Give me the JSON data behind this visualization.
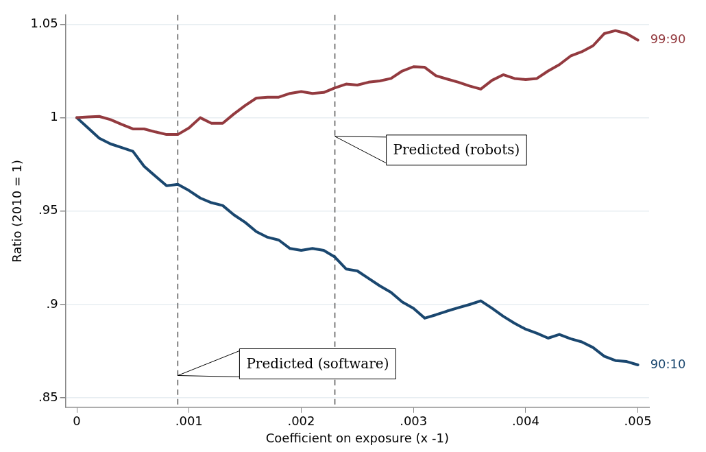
{
  "chart_data": {
    "type": "line",
    "xlabel": "Coefficient on exposure (x -1)",
    "ylabel": "Ratio (2010 = 1)",
    "x": [
      0,
      0.0001,
      0.0002,
      0.0003,
      0.0004,
      0.0005,
      0.0006,
      0.0007,
      0.0008,
      0.0009,
      0.001,
      0.0011,
      0.0012,
      0.0013,
      0.0014,
      0.0015,
      0.0016,
      0.0017,
      0.0018,
      0.0019,
      0.002,
      0.0021,
      0.0022,
      0.0023,
      0.0024,
      0.0025,
      0.0026,
      0.0027,
      0.0028,
      0.0029,
      0.003,
      0.0031,
      0.0032,
      0.0033,
      0.0034,
      0.0035,
      0.0036,
      0.0037,
      0.0038,
      0.0039,
      0.004,
      0.0041,
      0.0042,
      0.0043,
      0.0044,
      0.0045,
      0.0046,
      0.0047,
      0.0048,
      0.0049,
      0.005
    ],
    "series": [
      {
        "name": "99:90",
        "color": "#933a3f",
        "values": [
          1.0,
          1.0004,
          1.0007,
          0.999,
          0.9964,
          0.994,
          0.994,
          0.9924,
          0.991,
          0.991,
          0.9945,
          1.0,
          0.997,
          0.997,
          1.002,
          1.0065,
          1.0105,
          1.011,
          1.011,
          1.013,
          1.014,
          1.013,
          1.0135,
          1.016,
          1.018,
          1.0175,
          1.019,
          1.0197,
          1.021,
          1.025,
          1.0273,
          1.027,
          1.0225,
          1.0207,
          1.019,
          1.017,
          1.0153,
          1.02,
          1.023,
          1.021,
          1.0204,
          1.021,
          1.025,
          1.0284,
          1.033,
          1.0353,
          1.0385,
          1.045,
          1.0466,
          1.045,
          1.0415
        ]
      },
      {
        "name": "90:10",
        "color": "#1a476f",
        "values": [
          1.0,
          0.9945,
          0.989,
          0.986,
          0.984,
          0.982,
          0.974,
          0.9687,
          0.9636,
          0.9643,
          0.961,
          0.957,
          0.9545,
          0.953,
          0.948,
          0.944,
          0.939,
          0.936,
          0.9345,
          0.93,
          0.929,
          0.93,
          0.929,
          0.9254,
          0.919,
          0.918,
          0.914,
          0.91,
          0.9065,
          0.9014,
          0.898,
          0.8927,
          0.8945,
          0.8965,
          0.8983,
          0.9,
          0.902,
          0.898,
          0.8937,
          0.89,
          0.8868,
          0.8846,
          0.882,
          0.884,
          0.8817,
          0.88,
          0.877,
          0.8723,
          0.87,
          0.8695,
          0.8677
        ]
      }
    ],
    "xlim": [
      -0.0001,
      0.0051
    ],
    "xticks": [
      0,
      {
        "value": 0.001,
        "label": ".001"
      },
      {
        "value": 0.002,
        "label": ".002"
      },
      {
        "value": 0.003,
        "label": ".003"
      },
      {
        "value": 0.004,
        "label": ".004"
      },
      {
        "value": 0.005,
        "label": ".005"
      }
    ],
    "ylim": [
      0.845,
      1.055
    ],
    "yticks": [
      {
        "value": 0.85,
        "label": ".85"
      },
      {
        "value": 0.9,
        "label": ".9"
      },
      {
        "value": 0.95,
        "label": ".95"
      },
      1,
      1.05
    ],
    "ref_lines": [
      {
        "axis": "x",
        "value": 0.0009,
        "color": "#555555",
        "line_style": "dashed"
      },
      {
        "axis": "x",
        "value": 0.0023,
        "color": "#555555",
        "line_style": "dashed"
      }
    ],
    "annotations": [
      {
        "text": "Predicted (robots)",
        "x": 0.0023,
        "y": 0.99
      },
      {
        "text": "Predicted (software)",
        "x": 0.0009,
        "y": 0.862
      }
    ],
    "grid": "y",
    "legend": false,
    "marker": "none",
    "line_style": "solid"
  }
}
